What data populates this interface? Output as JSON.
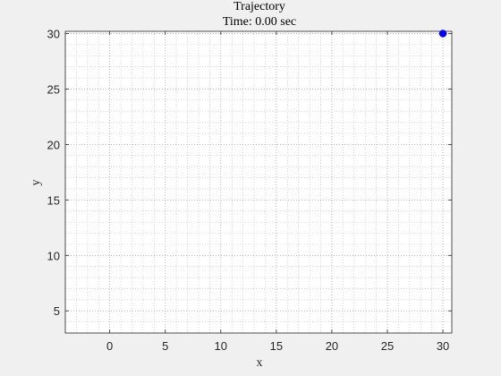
{
  "figure": {
    "background": "#f0f0f0"
  },
  "chart_data": {
    "type": "scatter",
    "title": "Trajectory",
    "subtitle": "Time: 0.00 sec",
    "xlabel": "x",
    "ylabel": "y",
    "xlim": [
      -4,
      30.8
    ],
    "ylim": [
      3,
      30.2
    ],
    "xticks": [
      0,
      5,
      10,
      15,
      20,
      25,
      30
    ],
    "yticks": [
      5,
      10,
      15,
      20,
      25,
      30
    ],
    "grid": true,
    "minor_grid": true,
    "minor_step": 1,
    "points": [
      {
        "x": 30,
        "y": 30
      }
    ],
    "marker_color": "#0000ff",
    "axes_background": "#ffffff",
    "axis_color": "#262626",
    "grid_color": "#bfbfbf"
  }
}
